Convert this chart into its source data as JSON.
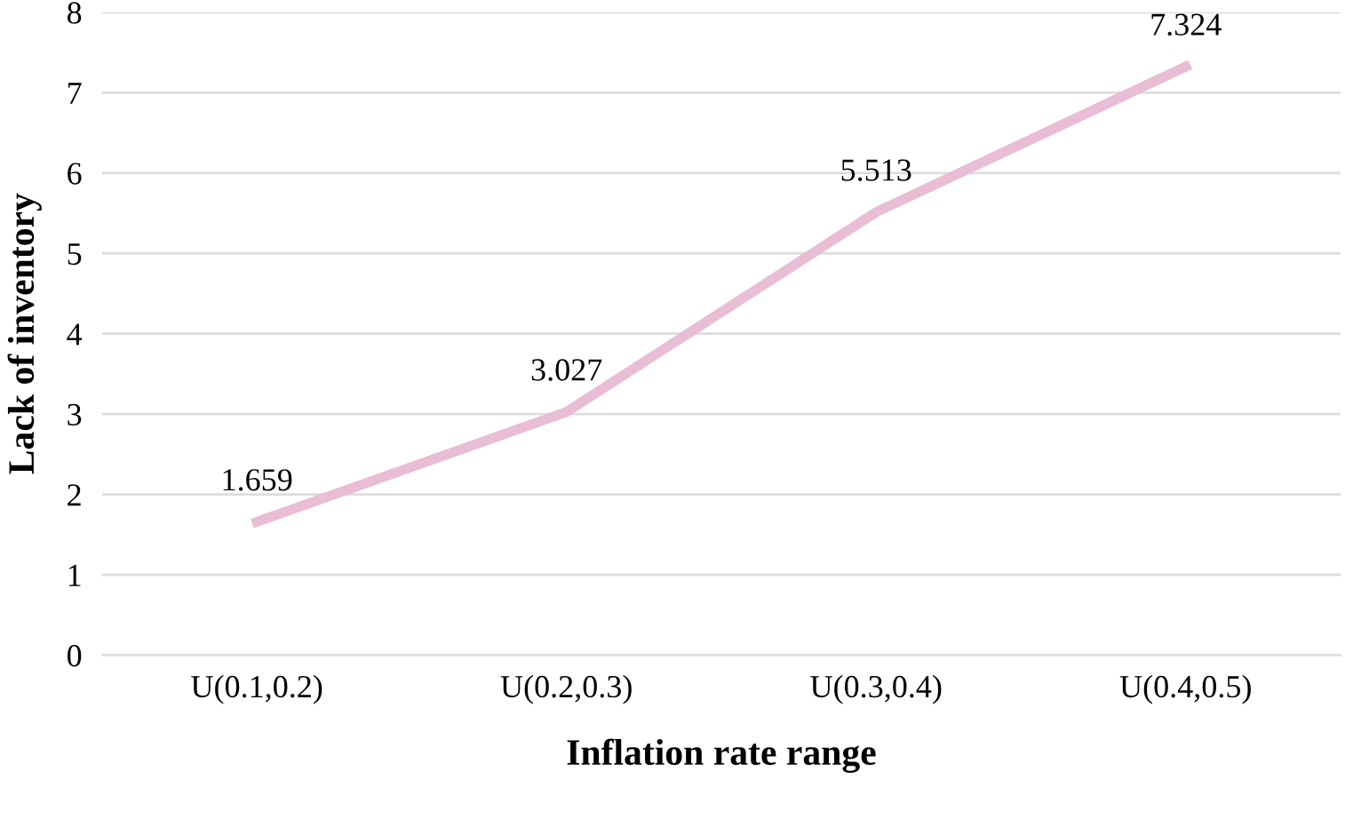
{
  "chart_data": {
    "type": "line",
    "xlabel": "Inflation rate range",
    "ylabel": "Lack of inventory",
    "categories": [
      "U(0.1,0.2)",
      "U(0.2,0.3)",
      "U(0.3,0.4)",
      "U(0.4,0.5)"
    ],
    "series": [
      {
        "color": "#e9bdd5",
        "values": [
          1.659,
          3.027,
          5.513,
          7.324
        ]
      }
    ],
    "ylim": [
      0,
      8
    ],
    "yticks": [
      0,
      1,
      2,
      3,
      4,
      5,
      6,
      7,
      8
    ],
    "grid": "y",
    "data_labels": true,
    "marker": "none",
    "line_style": "solid"
  }
}
